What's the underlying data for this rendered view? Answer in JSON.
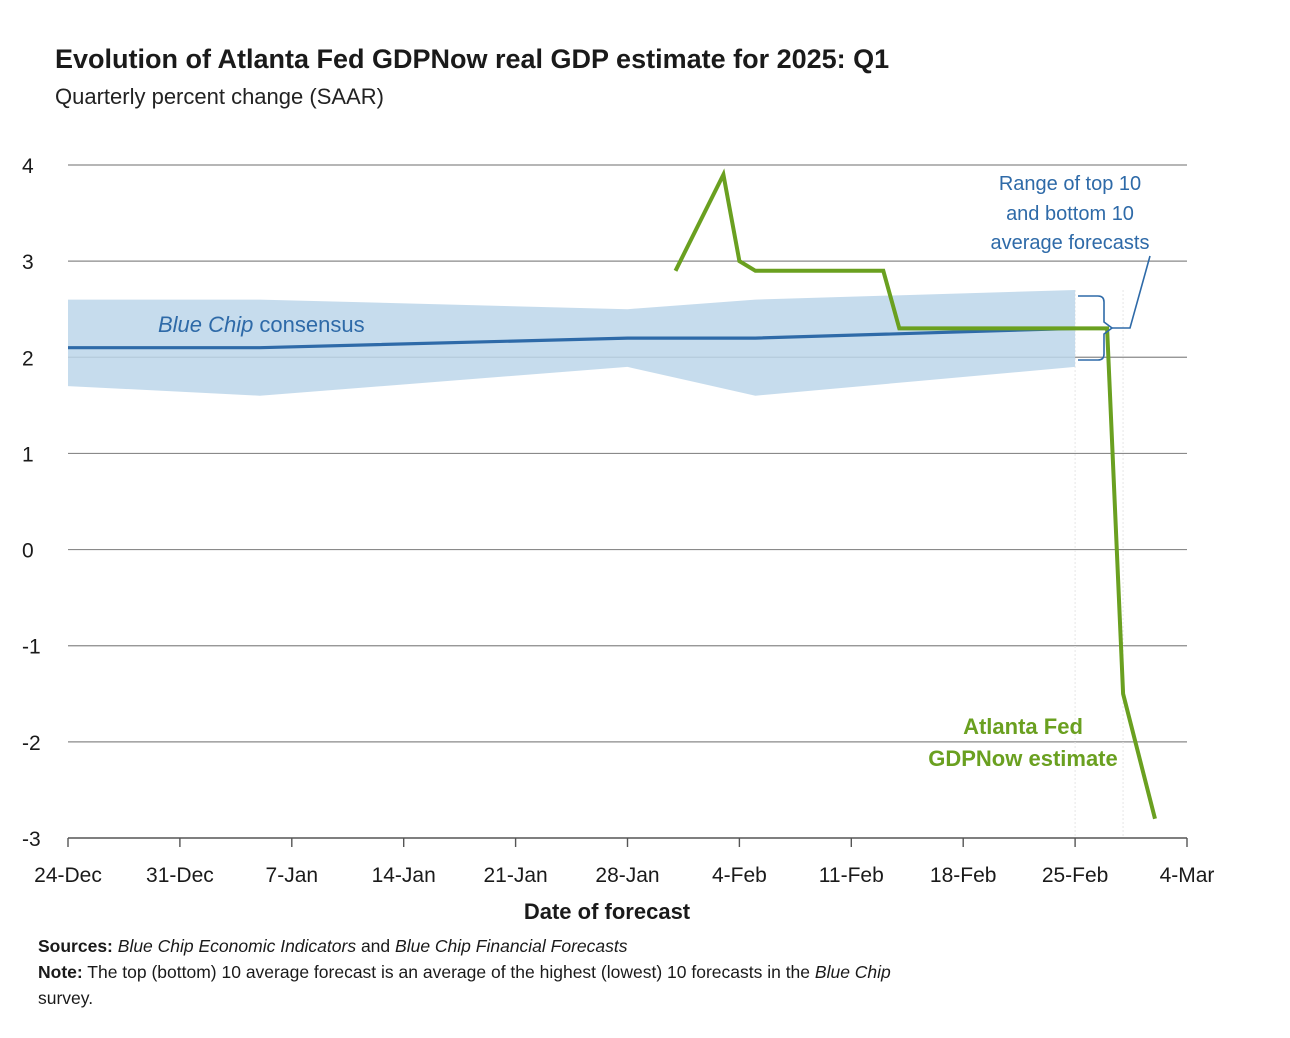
{
  "chart_data": {
    "type": "line",
    "title": "Evolution of Atlanta Fed GDPNow real GDP estimate for 2025: Q1",
    "subtitle": "Quarterly percent change (SAAR)",
    "xlabel": "Date of forecast",
    "ylabel": "",
    "ylim": [
      -3,
      4
    ],
    "xlim_days": [
      0,
      70
    ],
    "y_ticks": [
      "4",
      "3",
      "2",
      "1",
      "0",
      "-1",
      "-2",
      "-3"
    ],
    "y_tick_values": [
      4,
      3,
      2,
      1,
      0,
      -1,
      -2,
      -3
    ],
    "x_ticks": [
      "24-Dec",
      "31-Dec",
      "7-Jan",
      "14-Jan",
      "21-Jan",
      "28-Jan",
      "4-Feb",
      "11-Feb",
      "18-Feb",
      "25-Feb",
      "4-Mar"
    ],
    "x_tick_days": [
      0,
      7,
      14,
      21,
      28,
      35,
      42,
      49,
      56,
      63,
      70
    ],
    "x_axis_note": "x values are days since 24-Dec",
    "grid": true,
    "series": [
      {
        "name": "Blue Chip consensus",
        "color": "#2e6aa8",
        "x": [
          0,
          12,
          35,
          43,
          63
        ],
        "y": [
          2.1,
          2.1,
          2.2,
          2.2,
          2.3
        ]
      },
      {
        "name": "Range of top 10 and bottom 10 average forecasts",
        "type": "area",
        "color": "#bcd6ea",
        "x": [
          0,
          12,
          35,
          43,
          63
        ],
        "upper": [
          2.6,
          2.6,
          2.5,
          2.6,
          2.7
        ],
        "lower": [
          1.7,
          1.6,
          1.9,
          1.6,
          1.9
        ]
      },
      {
        "name": "Atlanta Fed GDPNow estimate",
        "color": "#6aa020",
        "x": [
          38,
          41,
          42,
          43,
          51,
          52,
          63,
          64,
          65,
          66,
          68
        ],
        "y": [
          2.9,
          3.9,
          3.0,
          2.9,
          2.9,
          2.3,
          2.3,
          2.3,
          2.3,
          -1.5,
          -2.8
        ]
      }
    ],
    "annotations": {
      "blue_chip_label_italic": "Blue Chip",
      "blue_chip_label_rest": "consensus",
      "range_label_lines": [
        "Range of top 10",
        "and bottom 10",
        "average forecasts"
      ],
      "gdpnow_label_lines": [
        "Atlanta Fed",
        "GDPNow estimate"
      ]
    }
  },
  "footer": {
    "sources_label": "Sources:",
    "sources_part1": "Blue Chip Economic Indicators",
    "sources_and": "and",
    "sources_part2": "Blue Chip Financial Forecasts",
    "note_label": "Note:",
    "note_text": "The top (bottom) 10 average forecast is an average of the highest (lowest) 10 forecasts in the",
    "note_italic": "Blue Chip",
    "note_end": "survey."
  }
}
